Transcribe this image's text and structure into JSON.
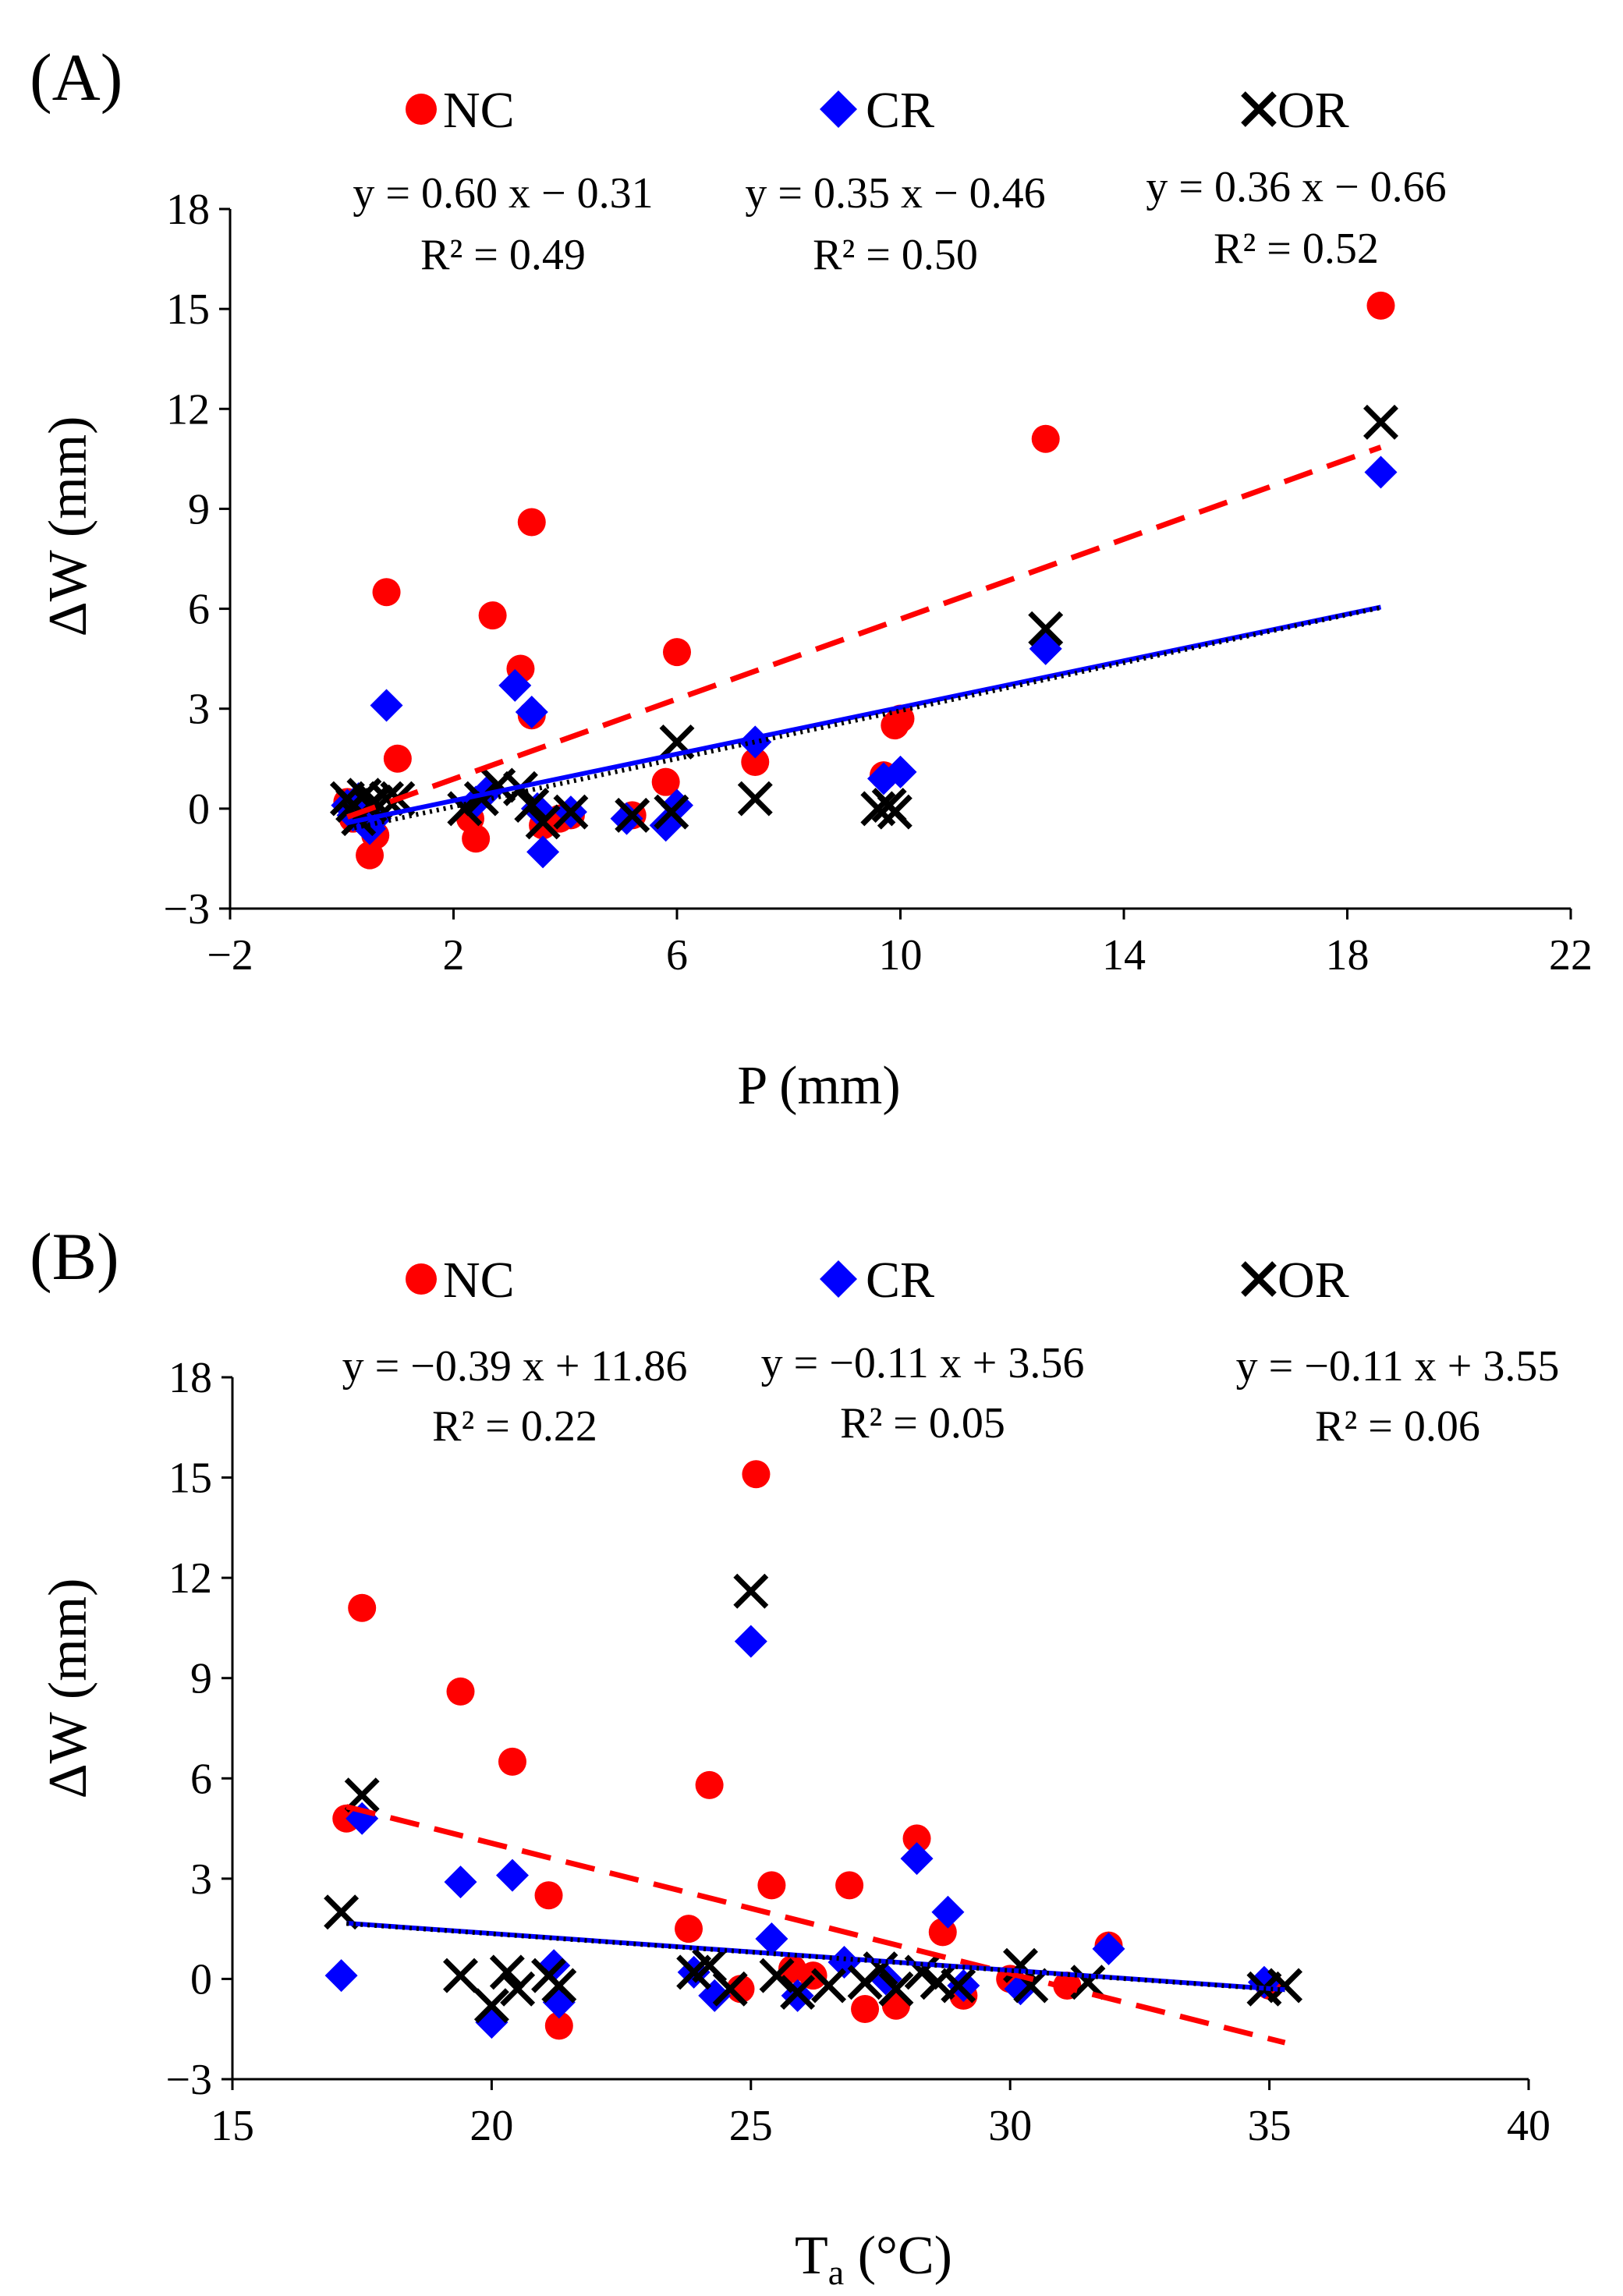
{
  "chart_data": [
    {
      "type": "scatter",
      "panel_label": "(A)",
      "xlabel_main": "P",
      "xlabel_rest": " (mm)",
      "ylabel": "ΔW (mm)",
      "xlim": [
        -2,
        22
      ],
      "ylim": [
        -3,
        18
      ],
      "xticks": [
        -2,
        2,
        6,
        10,
        14,
        18,
        22
      ],
      "yticks": [
        -3,
        0,
        3,
        6,
        9,
        12,
        15,
        18
      ],
      "xtick_labels": [
        "−2",
        "2",
        "6",
        "10",
        "14",
        "18",
        "22"
      ],
      "ytick_labels": [
        "−3",
        "0",
        "3",
        "6",
        "9",
        "12",
        "15",
        "18"
      ],
      "legend": [
        "NC",
        "CR",
        "OR"
      ],
      "equations": [
        {
          "eq": "y = 0.60 x − 0.31",
          "r2": "R² = 0.49"
        },
        {
          "eq": "y = 0.35 x − 0.46",
          "r2": "R² = 0.50"
        },
        {
          "eq": "y = 0.36 x − 0.66",
          "r2": "R² = 0.52"
        }
      ],
      "series": [
        {
          "name": "NC",
          "marker": "circle",
          "color": "#ff0000",
          "trend": {
            "slope": 0.6,
            "intercept": -0.31,
            "x_range": [
              0.1,
              18.6
            ],
            "style": "dashed"
          },
          "x": [
            0.1,
            0.2,
            0.3,
            0.5,
            0.6,
            0.8,
            1.0,
            2.3,
            2.4,
            2.7,
            3.2,
            3.4,
            3.4,
            3.6,
            3.9,
            4.1,
            5.2,
            5.8,
            6.0,
            7.4,
            9.7,
            9.9,
            10.0,
            12.6,
            18.6
          ],
          "y": [
            0.2,
            -0.3,
            0.1,
            -1.4,
            -0.8,
            6.5,
            1.5,
            -0.3,
            -0.9,
            5.8,
            4.2,
            8.6,
            2.8,
            -0.5,
            -0.3,
            -0.2,
            -0.2,
            0.8,
            4.7,
            1.4,
            1.0,
            2.5,
            2.7,
            11.1,
            15.1
          ]
        },
        {
          "name": "CR",
          "marker": "diamond",
          "color": "#0000ff",
          "trend": {
            "slope": 0.35,
            "intercept": -0.46,
            "x_range": [
              0.1,
              18.6
            ],
            "style": "solid"
          },
          "x": [
            0.1,
            0.2,
            0.3,
            0.4,
            0.5,
            0.6,
            0.8,
            2.4,
            2.6,
            3.1,
            3.4,
            3.5,
            3.6,
            4.1,
            5.1,
            5.8,
            6.0,
            7.4,
            9.7,
            10.0,
            12.6,
            18.6
          ],
          "y": [
            0.1,
            -0.2,
            0.3,
            -0.4,
            -0.6,
            -0.3,
            3.1,
            0.2,
            0.5,
            3.7,
            2.9,
            0.0,
            -1.3,
            -0.1,
            -0.3,
            -0.5,
            0.1,
            2.0,
            0.9,
            1.1,
            4.8,
            10.1
          ]
        },
        {
          "name": "OR",
          "marker": "x",
          "color": "#000000",
          "trend": {
            "slope": 0.36,
            "intercept": -0.66,
            "x_range": [
              0.1,
              18.6
            ],
            "style": "dotted"
          },
          "x": [
            0.1,
            0.2,
            0.3,
            0.4,
            0.5,
            0.6,
            0.8,
            1.0,
            2.2,
            2.5,
            2.8,
            3.2,
            3.4,
            3.6,
            4.1,
            5.2,
            5.9,
            6.0,
            7.4,
            9.6,
            9.8,
            9.9,
            12.6,
            18.6
          ],
          "y": [
            0.3,
            0.1,
            -0.3,
            0.4,
            0.1,
            0.2,
            0.3,
            0.3,
            0.0,
            0.3,
            0.7,
            0.6,
            0.1,
            -0.4,
            -0.1,
            -0.2,
            -0.1,
            2.0,
            0.3,
            0.0,
            0.1,
            -0.1,
            5.4,
            11.6
          ]
        }
      ]
    },
    {
      "type": "scatter",
      "panel_label": "(B)",
      "xlabel_main": "T",
      "xlabel_sub": "a",
      "xlabel_rest": " (°C)",
      "ylabel": "ΔW (mm)",
      "xlim": [
        15,
        40
      ],
      "ylim": [
        -3,
        18
      ],
      "xticks": [
        15,
        20,
        25,
        30,
        35,
        40
      ],
      "yticks": [
        -3,
        0,
        3,
        6,
        9,
        12,
        15,
        18
      ],
      "xtick_labels": [
        "15",
        "20",
        "25",
        "30",
        "35",
        "40"
      ],
      "ytick_labels": [
        "−3",
        "0",
        "3",
        "6",
        "9",
        "12",
        "15",
        "18"
      ],
      "legend": [
        "NC",
        "CR",
        "OR"
      ],
      "equations": [
        {
          "eq": "y = −0.39 x + 11.86",
          "r2": "R² = 0.22"
        },
        {
          "eq": "y = −0.11 x + 3.56",
          "r2": "R² = 0.05"
        },
        {
          "eq": "y = −0.11 x + 3.55",
          "r2": "R² = 0.06"
        }
      ],
      "series": [
        {
          "name": "NC",
          "marker": "circle",
          "color": "#ff0000",
          "trend": {
            "slope": -0.39,
            "intercept": 11.86,
            "x_range": [
              17.2,
              35.3
            ],
            "style": "dashed"
          },
          "x": [
            17.2,
            17.5,
            19.4,
            20.4,
            21.1,
            21.3,
            23.8,
            24.2,
            24.8,
            25.1,
            25.4,
            25.8,
            26.2,
            26.9,
            27.2,
            27.8,
            28.2,
            28.7,
            29.1,
            30.0,
            31.1,
            31.9,
            35.0
          ],
          "y": [
            4.8,
            11.1,
            8.6,
            6.5,
            2.5,
            -1.4,
            1.5,
            5.8,
            -0.3,
            15.1,
            2.8,
            0.3,
            0.1,
            2.8,
            -0.9,
            -0.8,
            4.2,
            1.4,
            -0.5,
            0.0,
            -0.2,
            1.0,
            -0.2
          ]
        },
        {
          "name": "CR",
          "marker": "diamond",
          "color": "#0000ff",
          "trend": {
            "slope": -0.11,
            "intercept": 3.56,
            "x_range": [
              17.2,
              35.3
            ],
            "style": "solid"
          },
          "x": [
            17.1,
            17.5,
            19.4,
            20.4,
            20.0,
            21.2,
            21.3,
            23.9,
            24.3,
            25.0,
            25.4,
            25.9,
            26.8,
            27.6,
            28.2,
            28.8,
            29.1,
            30.2,
            31.9,
            34.9
          ],
          "y": [
            0.1,
            4.8,
            2.9,
            3.1,
            -1.3,
            0.4,
            -0.7,
            0.2,
            -0.5,
            10.1,
            1.2,
            -0.5,
            0.5,
            0.0,
            3.6,
            2.0,
            -0.2,
            -0.3,
            0.9,
            -0.1
          ]
        },
        {
          "name": "OR",
          "marker": "x",
          "color": "#000000",
          "trend": {
            "slope": -0.11,
            "intercept": 3.55,
            "x_range": [
              17.2,
              35.3
            ],
            "style": "dotted"
          },
          "x": [
            17.1,
            17.5,
            19.4,
            20.0,
            20.3,
            20.5,
            21.1,
            21.3,
            23.9,
            24.2,
            24.6,
            25.0,
            25.5,
            25.9,
            26.5,
            27.2,
            27.5,
            27.8,
            28.3,
            28.6,
            29.0,
            30.2,
            30.4,
            31.5,
            34.9,
            35.3
          ],
          "y": [
            2.0,
            5.5,
            0.1,
            -0.8,
            0.2,
            -0.3,
            0.1,
            -0.2,
            0.2,
            0.4,
            -0.3,
            11.6,
            0.1,
            -0.4,
            -0.2,
            -0.1,
            0.3,
            -0.3,
            0.2,
            -0.1,
            -0.2,
            0.4,
            -0.2,
            -0.1,
            -0.3,
            -0.2
          ]
        }
      ]
    }
  ]
}
